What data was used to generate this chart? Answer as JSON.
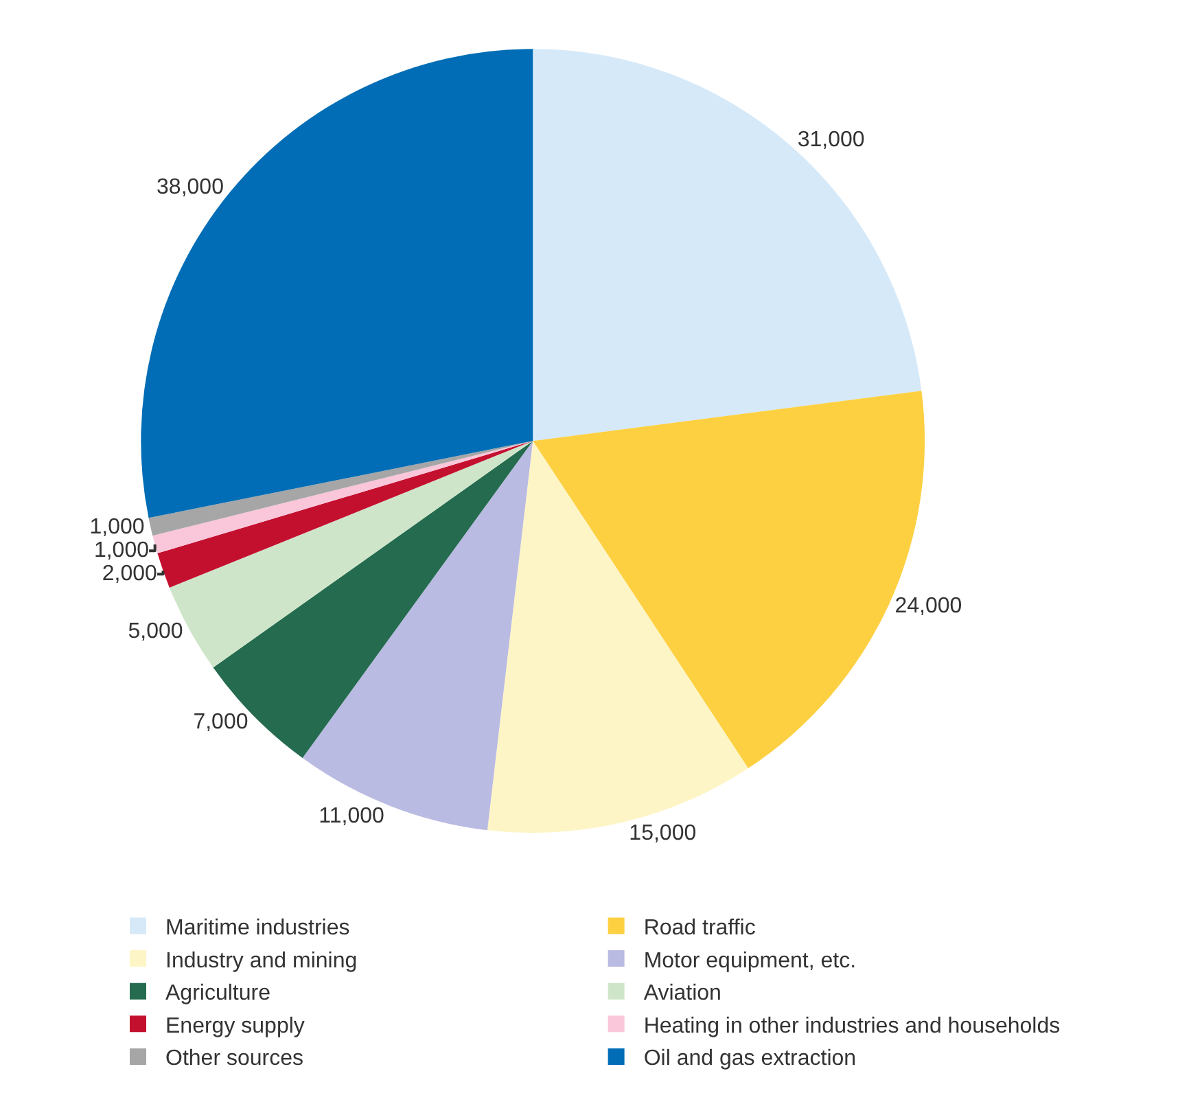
{
  "chart_data": {
    "type": "pie",
    "categories": [
      "Maritime industries",
      "Road traffic",
      "Industry and mining",
      "Motor equipment, etc.",
      "Agriculture",
      "Aviation",
      "Energy supply",
      "Heating in other industries and households",
      "Other sources",
      "Oil and gas extraction"
    ],
    "values": [
      31000,
      24000,
      15000,
      11000,
      7000,
      5000,
      2000,
      1000,
      1000,
      38000
    ],
    "value_labels": [
      "31,000",
      "24,000",
      "15,000",
      "11,000",
      "7,000",
      "5,000",
      "2,000",
      "1,000",
      "1,000",
      "38,000"
    ],
    "colors": [
      "#d6e9f8",
      "#fdd041",
      "#fef5c6",
      "#babbe2",
      "#256b4f",
      "#cfe5c9",
      "#c4102f",
      "#f9c6da",
      "#a6a6a6",
      "#006db6"
    ],
    "legend": "bottom"
  }
}
